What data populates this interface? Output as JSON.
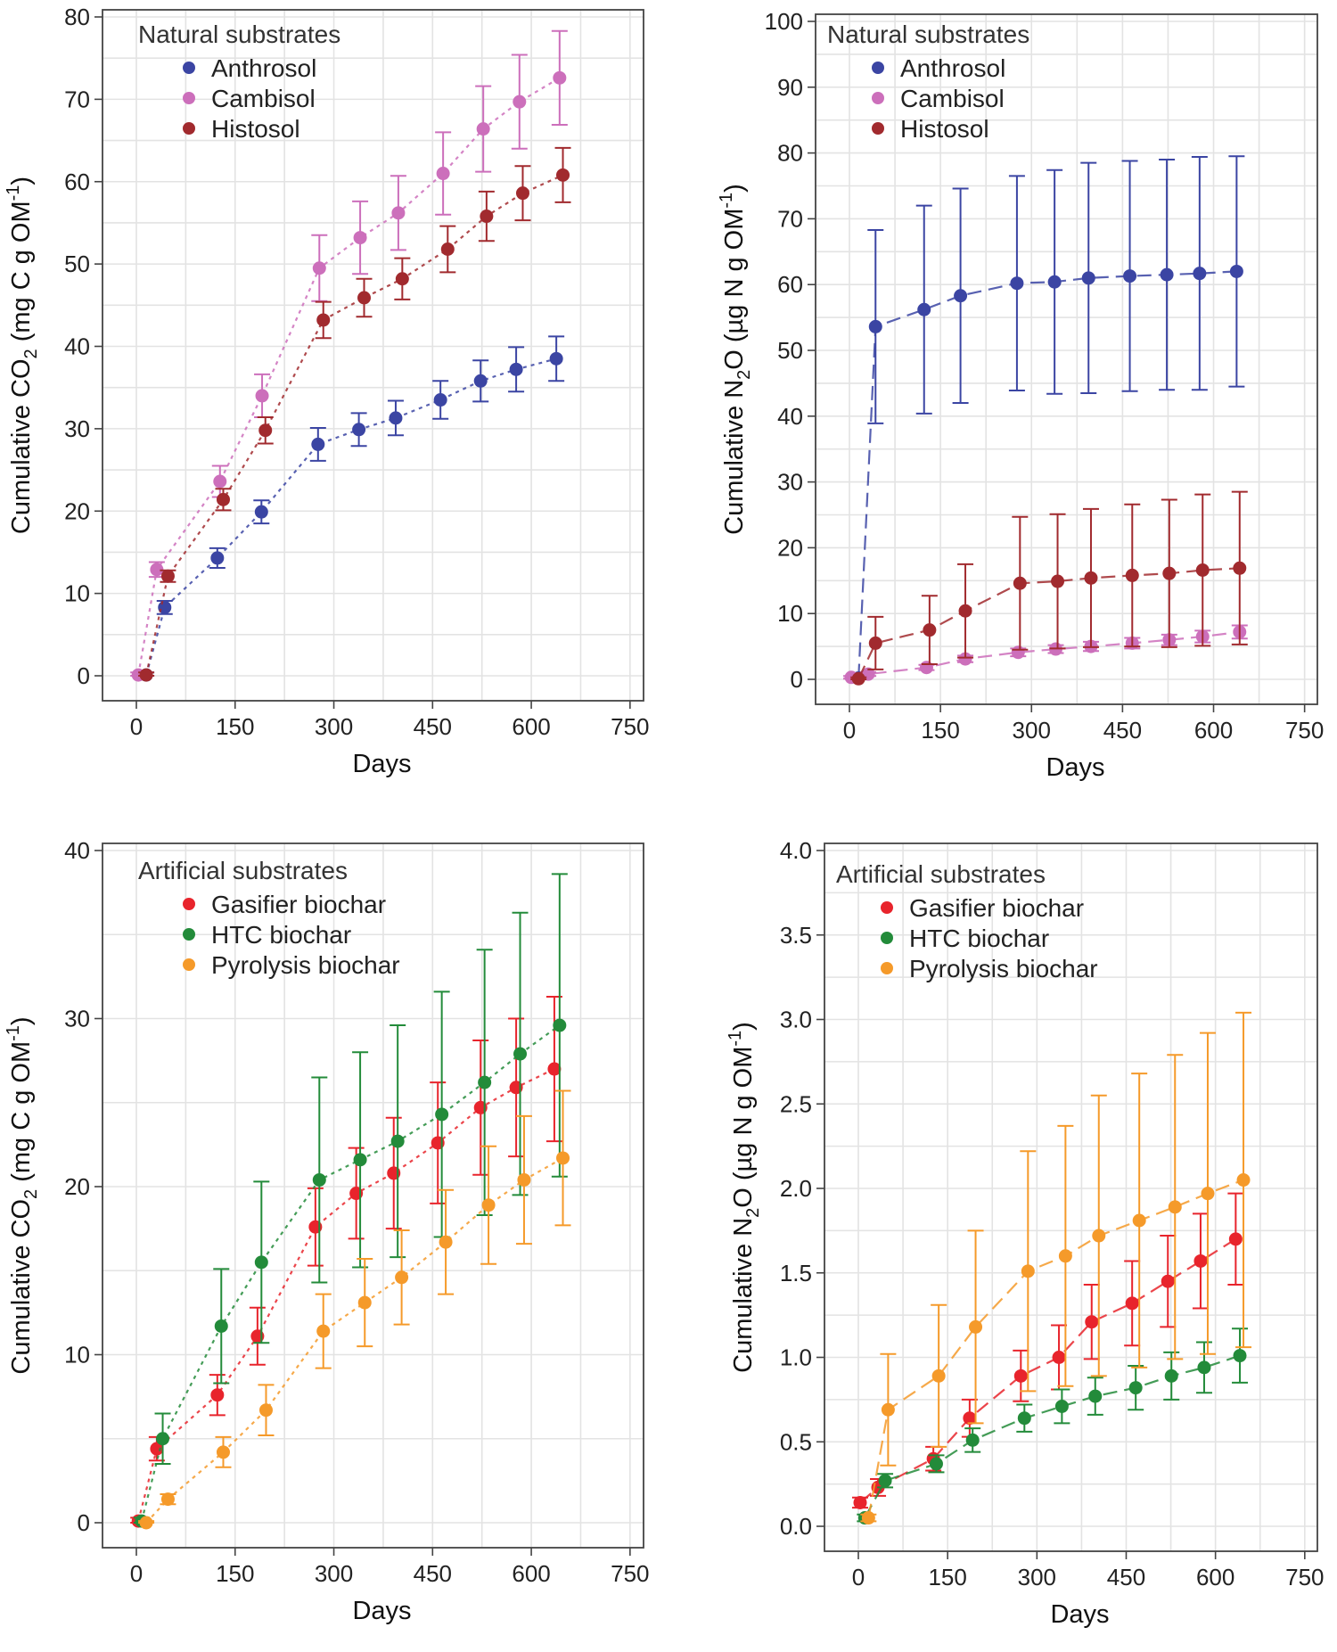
{
  "chart_data": [
    {
      "id": "co2_natural",
      "type": "scatter",
      "xlabel": "Days",
      "ylabel": {
        "pre": "Cumulative CO",
        "sub": "2",
        "mid": " (mg C g OM",
        "sup": "-1",
        "post": ")"
      },
      "xlim": [
        0,
        750
      ],
      "ylim": [
        0,
        80
      ],
      "xticks": [
        0,
        150,
        300,
        450,
        600,
        750
      ],
      "yticks": [
        0,
        10,
        20,
        30,
        40,
        50,
        60,
        70,
        80
      ],
      "ytick_labels": [
        "0",
        "10",
        "20",
        "30",
        "40",
        "50",
        "60",
        "70",
        "80"
      ],
      "legend_title": "Natural substrates",
      "line_style": "dotted",
      "series": [
        {
          "name": "Anthrosol",
          "color": "#3b45a3",
          "x": [
            15,
            43,
            123,
            190,
            276,
            338,
            394,
            462,
            523,
            577,
            638
          ],
          "y": [
            0.1,
            8.3,
            14.3,
            19.9,
            28.1,
            29.9,
            31.3,
            33.5,
            35.8,
            37.2,
            38.5
          ],
          "err": [
            0.3,
            0.8,
            1.2,
            1.4,
            2.0,
            2.0,
            2.1,
            2.3,
            2.5,
            2.7,
            2.7
          ]
        },
        {
          "name": "Cambisol",
          "color": "#cc6fbb",
          "x": [
            3,
            31,
            127,
            191,
            278,
            340,
            398,
            466,
            527,
            582,
            643
          ],
          "y": [
            0.1,
            12.9,
            23.6,
            34.0,
            49.5,
            53.2,
            56.2,
            61.0,
            66.4,
            69.7,
            72.6
          ],
          "err": [
            0.3,
            0.9,
            1.9,
            2.6,
            4.0,
            4.4,
            4.5,
            5.0,
            5.2,
            5.7,
            5.7
          ]
        },
        {
          "name": "Histosol",
          "color": "#a12a2e",
          "x": [
            15,
            48,
            132,
            196,
            284,
            346,
            404,
            473,
            532,
            587,
            648
          ],
          "y": [
            0.1,
            12.1,
            21.4,
            29.8,
            43.2,
            45.9,
            48.2,
            51.8,
            55.8,
            58.6,
            60.8
          ],
          "err": [
            0.3,
            0.7,
            1.3,
            1.6,
            2.2,
            2.3,
            2.5,
            2.8,
            3.0,
            3.3,
            3.3
          ]
        }
      ]
    },
    {
      "id": "n2o_natural",
      "type": "scatter",
      "xlabel": "Days",
      "ylabel": {
        "pre": "Cumulative N",
        "sub": "2",
        "mid": "O (µg N g OM",
        "sup": "-1",
        "post": ")"
      },
      "xlim": [
        0,
        750
      ],
      "ylim": [
        0,
        100
      ],
      "xticks": [
        0,
        150,
        300,
        450,
        600,
        750
      ],
      "yticks": [
        0,
        10,
        20,
        30,
        40,
        50,
        60,
        70,
        80,
        90,
        100
      ],
      "ytick_labels": [
        "0",
        "10",
        "20",
        "30",
        "40",
        "50",
        "60",
        "70",
        "80",
        "90",
        "100"
      ],
      "legend_title": "Natural substrates",
      "line_style": "dashed",
      "series": [
        {
          "name": "Anthrosol",
          "color": "#3b45a3",
          "x": [
            15,
            43,
            123,
            183,
            276,
            338,
            394,
            462,
            523,
            577,
            638
          ],
          "y": [
            0.2,
            53.6,
            56.2,
            58.3,
            60.2,
            60.4,
            61.0,
            61.3,
            61.5,
            61.7,
            62.0
          ],
          "err": [
            0.5,
            14.7,
            15.8,
            16.3,
            16.3,
            17.0,
            17.5,
            17.5,
            17.5,
            17.7,
            17.5
          ]
        },
        {
          "name": "Cambisol",
          "color": "#cc6fbb",
          "x": [
            3,
            31,
            127,
            191,
            278,
            340,
            398,
            466,
            527,
            582,
            643
          ],
          "y": [
            0.3,
            0.8,
            1.8,
            3.1,
            4.1,
            4.6,
            5.0,
            5.5,
            6.0,
            6.5,
            7.2
          ],
          "err": [
            0.2,
            0.3,
            0.4,
            0.5,
            0.6,
            0.6,
            0.7,
            0.8,
            0.8,
            0.9,
            1.0
          ]
        },
        {
          "name": "Histosol",
          "color": "#a12a2e",
          "x": [
            15,
            43,
            132,
            191,
            281,
            343,
            398,
            466,
            527,
            582,
            643
          ],
          "y": [
            0.1,
            5.5,
            7.5,
            10.4,
            14.6,
            14.9,
            15.4,
            15.8,
            16.1,
            16.6,
            16.9
          ],
          "err": [
            0.2,
            4.0,
            5.2,
            7.1,
            10.1,
            10.2,
            10.5,
            10.8,
            11.2,
            11.5,
            11.6
          ]
        }
      ]
    },
    {
      "id": "co2_artificial",
      "type": "scatter",
      "xlabel": "Days",
      "ylabel": {
        "pre": "Cumulative CO",
        "sub": "2",
        "mid": " (mg C g OM",
        "sup": "-1",
        "post": ")"
      },
      "xlim": [
        0,
        750
      ],
      "ylim": [
        0,
        40
      ],
      "xticks": [
        0,
        150,
        300,
        450,
        600,
        750
      ],
      "yticks": [
        0,
        10,
        20,
        30,
        40
      ],
      "ytick_labels": [
        "0",
        "10",
        "20",
        "30",
        "40"
      ],
      "legend_title": "Artificial substrates",
      "line_style": "dotted",
      "series": [
        {
          "name": "Gasifier biochar",
          "color": "#e8242c",
          "x": [
            3,
            31,
            123,
            184,
            272,
            334,
            391,
            458,
            523,
            577,
            635
          ],
          "y": [
            0.1,
            4.4,
            7.6,
            11.1,
            17.6,
            19.6,
            20.8,
            22.6,
            24.7,
            25.9,
            27.0
          ],
          "err": [
            0.2,
            0.7,
            1.2,
            1.7,
            2.3,
            2.7,
            3.3,
            3.6,
            4.0,
            4.1,
            4.3
          ]
        },
        {
          "name": "HTC biochar",
          "color": "#238b3a",
          "x": [
            8,
            40,
            129,
            190,
            278,
            340,
            397,
            464,
            529,
            583,
            643
          ],
          "y": [
            0.1,
            5.0,
            11.7,
            15.5,
            20.4,
            21.6,
            22.7,
            24.3,
            26.2,
            27.9,
            29.6
          ],
          "err": [
            0.2,
            1.5,
            3.4,
            4.8,
            6.1,
            6.4,
            6.9,
            7.3,
            7.9,
            8.4,
            9.0
          ]
        },
        {
          "name": "Pyrolysis biochar",
          "color": "#f59a2a",
          "x": [
            15,
            48,
            132,
            197,
            284,
            347,
            403,
            470,
            535,
            589,
            648
          ],
          "y": [
            0.0,
            1.4,
            4.2,
            6.7,
            11.4,
            13.1,
            14.6,
            16.7,
            18.9,
            20.4,
            21.7
          ],
          "err": [
            0.1,
            0.3,
            0.9,
            1.5,
            2.2,
            2.6,
            2.8,
            3.1,
            3.5,
            3.8,
            4.0
          ]
        }
      ]
    },
    {
      "id": "n2o_artificial",
      "type": "scatter",
      "xlabel": "Days",
      "ylabel": {
        "pre": "Cumulative N",
        "sub": "2",
        "mid": "O (µg N g OM",
        "sup": "-1",
        "post": ")"
      },
      "xlim": [
        0,
        750
      ],
      "ylim": [
        0,
        4
      ],
      "xticks": [
        0,
        150,
        300,
        450,
        600,
        750
      ],
      "yticks": [
        0,
        0.5,
        1,
        1.5,
        2,
        2.5,
        3,
        3.5,
        4
      ],
      "ytick_labels": [
        "0.0",
        "0.5",
        "1.0",
        "1.5",
        "2.0",
        "2.5",
        "3.0",
        "3.5",
        "4.0"
      ],
      "legend_title": "Artificial substrates",
      "line_style": "dashed",
      "series": [
        {
          "name": "Gasifier biochar",
          "color": "#e8242c",
          "x": [
            3,
            33,
            126,
            187,
            273,
            337,
            392,
            460,
            520,
            575,
            634
          ],
          "y": [
            0.14,
            0.23,
            0.4,
            0.64,
            0.89,
            1.0,
            1.21,
            1.32,
            1.45,
            1.57,
            1.7
          ],
          "err": [
            0.03,
            0.05,
            0.07,
            0.11,
            0.15,
            0.19,
            0.22,
            0.25,
            0.27,
            0.28,
            0.27
          ]
        },
        {
          "name": "HTC biochar",
          "color": "#238b3a",
          "x": [
            11,
            45,
            131,
            192,
            279,
            342,
            398,
            466,
            526,
            581,
            641
          ],
          "y": [
            0.05,
            0.27,
            0.37,
            0.51,
            0.64,
            0.71,
            0.77,
            0.82,
            0.89,
            0.94,
            1.01
          ],
          "err": [
            0.02,
            0.04,
            0.05,
            0.07,
            0.08,
            0.1,
            0.11,
            0.13,
            0.14,
            0.15,
            0.16
          ]
        },
        {
          "name": "Pyrolysis biochar",
          "color": "#f59a2a",
          "x": [
            17,
            50,
            135,
            197,
            285,
            348,
            404,
            472,
            532,
            587,
            647
          ],
          "y": [
            0.05,
            0.69,
            0.89,
            1.18,
            1.51,
            1.6,
            1.72,
            1.81,
            1.89,
            1.97,
            2.05
          ],
          "err": [
            0.02,
            0.33,
            0.42,
            0.57,
            0.71,
            0.77,
            0.83,
            0.87,
            0.9,
            0.95,
            0.99
          ]
        }
      ]
    }
  ]
}
